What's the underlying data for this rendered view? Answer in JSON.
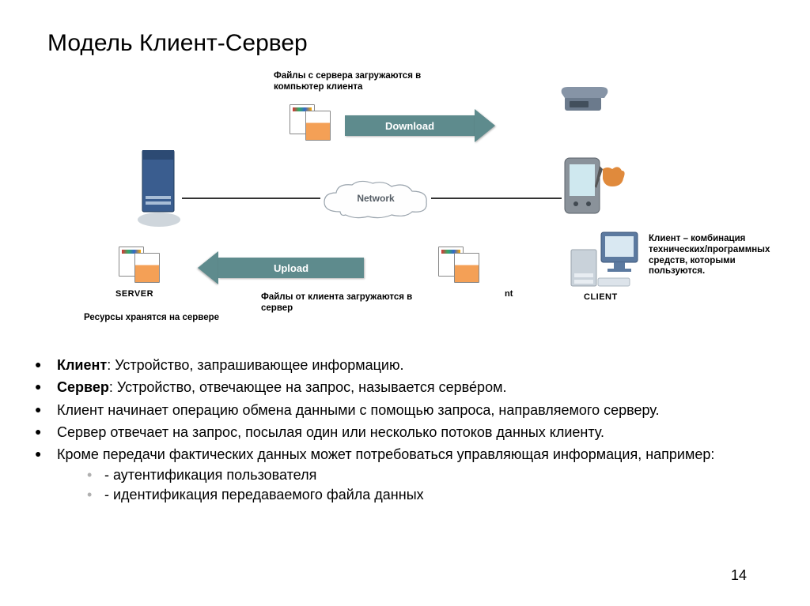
{
  "title": "Модель Клиент-Сервер",
  "diagram": {
    "type": "infographic",
    "background_color": "#ffffff",
    "arrow_color": "#5e8b8d",
    "arrow_text_color": "#ffffff",
    "line_color": "#333333",
    "download_caption": "Файлы с сервера загружаются в компьютер клиента",
    "download_label": "Download",
    "upload_caption": "Файлы от клиента загружаются в сервер",
    "upload_label": "Upload",
    "network_label": "Network",
    "server_label": "SERVER",
    "server_caption": "Ресурсы хранятся на сервере",
    "client_label": "CLIENT",
    "client_fragment": "nt",
    "client_caption": "Клиент – комбинация технических/программных средств, которыми пользуются.",
    "server_color": "#3a5d8f",
    "server_base_color": "#cfd6dc",
    "pda_body_color": "#8a929a",
    "pda_screen_color": "#cfe8ef",
    "phone_color": "#6b7a8c",
    "hand_color": "#e08a3c",
    "monitor_color": "#5c7aa0",
    "monitor_screen_color": "#d9e8f2",
    "pc_box_color": "#c9d2da",
    "label_font_size": 12,
    "caption_font_size": 11.5
  },
  "bullets": [
    "Клиент: Устройство, запрашивающее информацию.",
    "Сервер: Устройство, отвечающее на запрос, называется серве́ром.",
    "Клиент  начинает операцию обмена данными  с помощью запроса, направляемого серверу.",
    "Сервер отвечает на запрос, посылая один или несколько потоков данных клиенту.",
    "Кроме передачи фактических данных может потребоваться управляющая информация, например:"
  ],
  "sub_bullets": [
    "- аутентификация пользователя",
    "- идентификация передаваемого файла данных"
  ],
  "bold_prefixes": {
    "0": "Клиент",
    "1": "Сервер"
  },
  "page_number": "14"
}
